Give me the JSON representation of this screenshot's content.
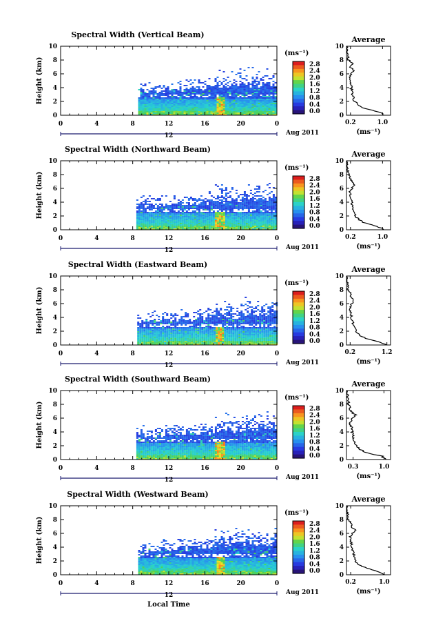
{
  "figure": {
    "xlabel": "Local Time",
    "date_label": "Aug 2011",
    "day_label": "12",
    "colorbar_unit": "(ms⁻¹)",
    "avg_title": "Average",
    "avg_xlabel": "(ms⁻¹)"
  },
  "chart_data": [
    {
      "type": "heatmap",
      "title": "Spectral Width (Vertical Beam)",
      "ylabel": "Height (km)",
      "xlim": [
        0,
        24
      ],
      "ylim": [
        0,
        10
      ],
      "xticks": [
        "0",
        "4",
        "8",
        "12",
        "16",
        "20",
        "0"
      ],
      "yticks": [
        "0",
        "2",
        "4",
        "6",
        "8",
        "10"
      ],
      "data_start_hour": 8.6,
      "colorbar": {
        "range": [
          0,
          2.8
        ],
        "ticks": [
          "2.8",
          "2.4",
          "2.0",
          "1.6",
          "1.2",
          "0.8",
          "0.4",
          "0.0"
        ]
      },
      "average_profile": {
        "xticks": [
          "0.2",
          "1.0"
        ],
        "xlim": [
          0.1,
          1.2
        ],
        "heights_km": [
          0,
          0.5,
          1,
          1.5,
          2,
          3,
          4,
          5,
          5.5,
          6,
          6.5,
          7,
          7.5,
          8,
          9,
          10
        ],
        "values": [
          1.05,
          0.9,
          0.55,
          0.4,
          0.3,
          0.25,
          0.22,
          0.2,
          0.18,
          0.22,
          0.28,
          0.2,
          0.25,
          0.15,
          0.12,
          0.1
        ]
      }
    },
    {
      "type": "heatmap",
      "title": "Spectral Width (Northward Beam)",
      "ylabel": "Height (km)",
      "xlim": [
        0,
        24
      ],
      "ylim": [
        0,
        10
      ],
      "xticks": [
        "0",
        "4",
        "8",
        "12",
        "16",
        "20",
        "0"
      ],
      "yticks": [
        "0",
        "2",
        "4",
        "6",
        "8",
        "10"
      ],
      "data_start_hour": 8.4,
      "colorbar": {
        "range": [
          0,
          2.8
        ],
        "ticks": [
          "2.8",
          "2.4",
          "2.0",
          "1.6",
          "1.2",
          "0.8",
          "0.4",
          "0.0"
        ]
      },
      "average_profile": {
        "xticks": [
          "0.2",
          "1.0"
        ],
        "xlim": [
          0.1,
          1.2
        ],
        "heights_km": [
          0,
          0.5,
          1,
          1.5,
          2,
          3,
          4,
          5,
          5.5,
          6,
          6.5,
          7,
          7.5,
          8,
          9,
          10
        ],
        "values": [
          1.05,
          0.85,
          0.55,
          0.4,
          0.32,
          0.27,
          0.23,
          0.2,
          0.18,
          0.24,
          0.3,
          0.22,
          0.2,
          0.15,
          0.12,
          0.1
        ]
      }
    },
    {
      "type": "heatmap",
      "title": "Spectral Width (Eastward Beam)",
      "ylabel": "Height (km)",
      "xlim": [
        0,
        24
      ],
      "ylim": [
        0,
        10
      ],
      "xticks": [
        "0",
        "4",
        "8",
        "12",
        "16",
        "20",
        "0"
      ],
      "yticks": [
        "0",
        "2",
        "4",
        "6",
        "8",
        "10"
      ],
      "data_start_hour": 8.5,
      "colorbar": {
        "range": [
          0,
          2.8
        ],
        "ticks": [
          "2.8",
          "2.4",
          "2.0",
          "1.6",
          "1.2",
          "0.8",
          "0.4",
          "0.0"
        ]
      },
      "average_profile": {
        "xticks": [
          "0.2",
          "1.2"
        ],
        "xlim": [
          0.1,
          1.3
        ],
        "heights_km": [
          0,
          0.5,
          1,
          1.5,
          2,
          3,
          4,
          5,
          5.5,
          6,
          6.5,
          7,
          7.5,
          8,
          9,
          10
        ],
        "values": [
          1.2,
          0.95,
          0.6,
          0.45,
          0.35,
          0.28,
          0.24,
          0.2,
          0.19,
          0.25,
          0.3,
          0.22,
          0.2,
          0.15,
          0.12,
          0.1
        ]
      }
    },
    {
      "type": "heatmap",
      "title": "Spectral Width (Southward Beam)",
      "ylabel": "Height (km)",
      "xlim": [
        0,
        24
      ],
      "ylim": [
        0,
        10
      ],
      "xticks": [
        "0",
        "4",
        "8",
        "12",
        "16",
        "20",
        "0"
      ],
      "yticks": [
        "0",
        "2",
        "4",
        "6",
        "8",
        "10"
      ],
      "data_start_hour": 8.4,
      "colorbar": {
        "range": [
          0,
          2.8
        ],
        "ticks": [
          "2.8",
          "2.4",
          "2.0",
          "1.6",
          "1.2",
          "0.8",
          "0.4",
          "0.0"
        ]
      },
      "average_profile": {
        "xticks": [
          "0.3",
          "1.0"
        ],
        "xlim": [
          0.15,
          1.15
        ],
        "heights_km": [
          0,
          0.5,
          1,
          1.5,
          2,
          3,
          4,
          5,
          5.5,
          6,
          6.5,
          7,
          7.5,
          8,
          9,
          10
        ],
        "values": [
          1.05,
          0.95,
          0.6,
          0.45,
          0.38,
          0.32,
          0.28,
          0.25,
          0.23,
          0.3,
          0.35,
          0.25,
          0.22,
          0.2,
          0.18,
          0.17
        ]
      }
    },
    {
      "type": "heatmap",
      "title": "Spectral Width (Westward Beam)",
      "ylabel": "Height (km)",
      "xlim": [
        0,
        24
      ],
      "ylim": [
        0,
        10
      ],
      "xticks": [
        "0",
        "4",
        "8",
        "12",
        "16",
        "20",
        "0"
      ],
      "yticks": [
        "0",
        "2",
        "4",
        "6",
        "8",
        "10"
      ],
      "data_start_hour": 8.6,
      "colorbar": {
        "range": [
          0,
          2.8
        ],
        "ticks": [
          "2.8",
          "2.4",
          "2.0",
          "1.6",
          "1.2",
          "0.8",
          "0.4",
          "0.0"
        ]
      },
      "average_profile": {
        "xticks": [
          "0.2",
          "1.0"
        ],
        "xlim": [
          0.1,
          1.15
        ],
        "heights_km": [
          0,
          0.5,
          1,
          1.5,
          2,
          3,
          4,
          5,
          5.5,
          6,
          6.5,
          7,
          7.5,
          8,
          9,
          10
        ],
        "values": [
          1.0,
          0.85,
          0.55,
          0.4,
          0.32,
          0.27,
          0.23,
          0.2,
          0.18,
          0.24,
          0.3,
          0.22,
          0.2,
          0.15,
          0.12,
          0.1
        ]
      }
    }
  ]
}
